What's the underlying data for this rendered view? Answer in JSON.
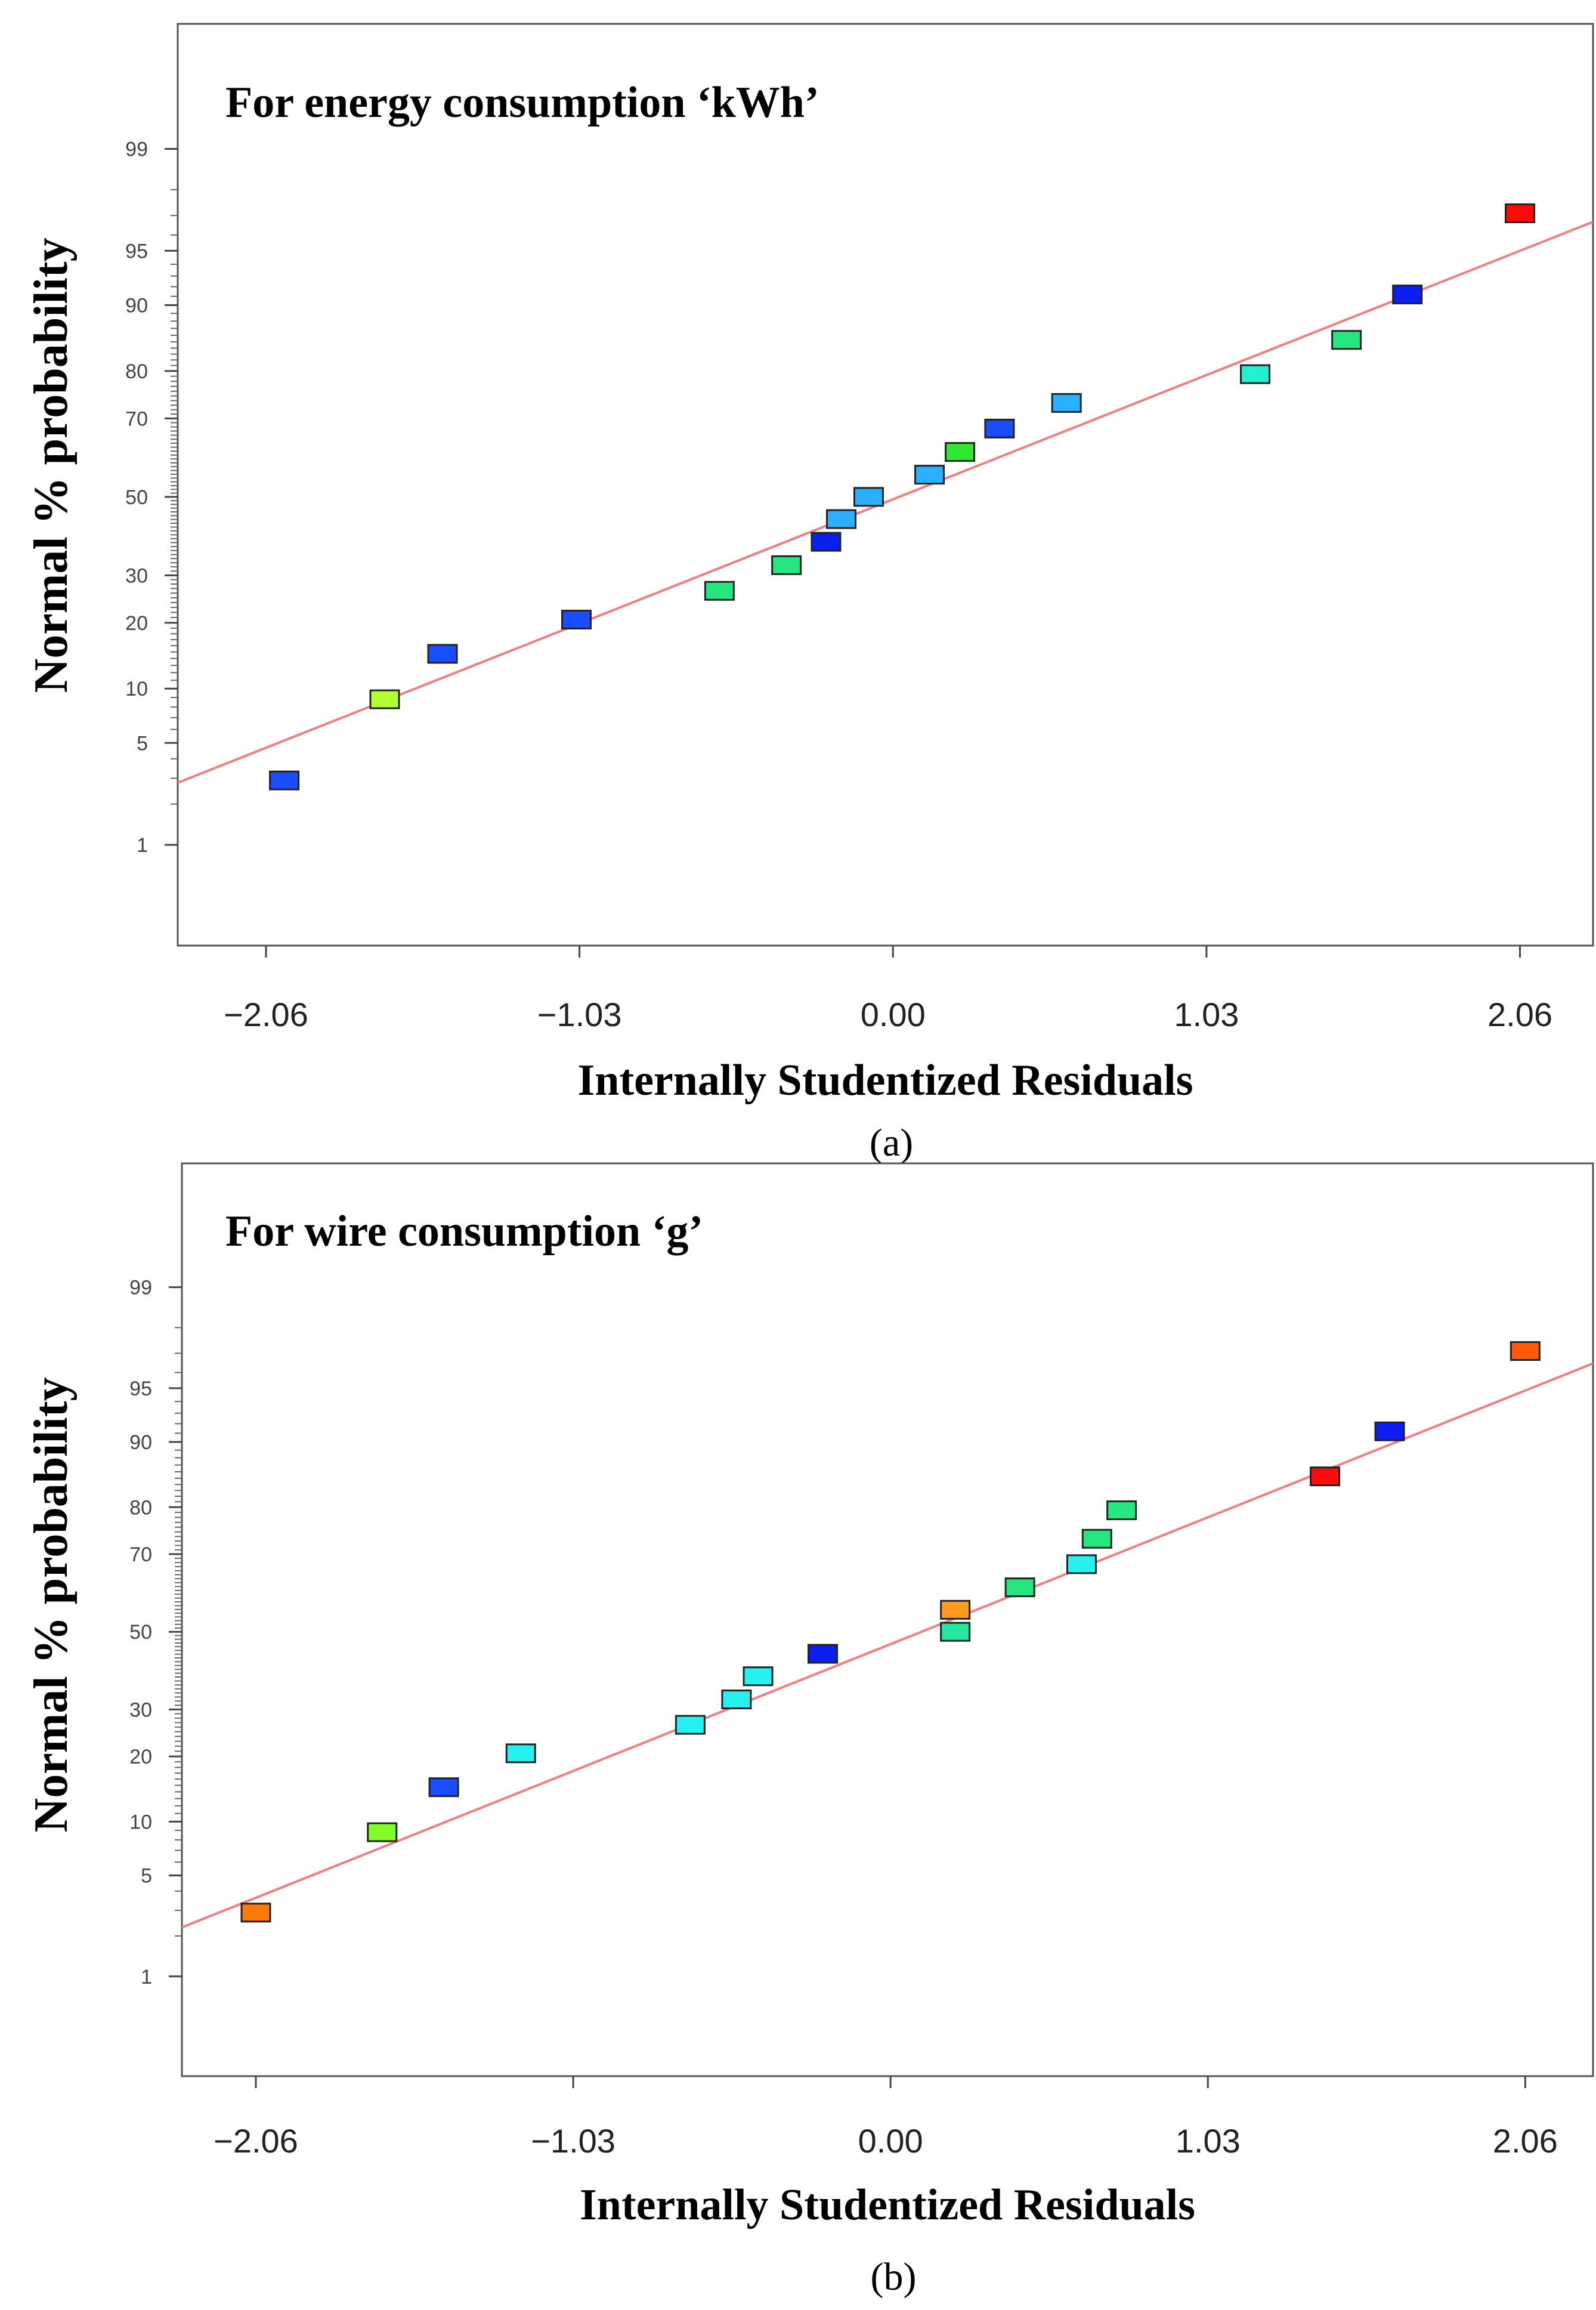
{
  "chart_data": [
    {
      "type": "scatter",
      "panel_label": "(a)",
      "title": "For energy consumption ‘kWh’",
      "xlabel": "Internally Studentized Residuals",
      "ylabel": "Normal % probability",
      "xlim": [
        -2.35,
        2.3
      ],
      "ylim": [
        0.15,
        99.9
      ],
      "x_ticks": [
        -2.06,
        -1.03,
        0.0,
        1.03,
        2.06
      ],
      "x_tick_labels": [
        "−2.06",
        "−1.03",
        "0.00",
        "1.03",
        "2.06"
      ],
      "y_ticks": [
        1,
        5,
        10,
        20,
        30,
        50,
        70,
        80,
        90,
        95,
        99
      ],
      "y_tick_labels": [
        "1",
        "5",
        "10",
        "20",
        "30",
        "50",
        "70",
        "80",
        "90",
        "95",
        "99"
      ],
      "line_color": "#f08080",
      "fit_line": {
        "x": [
          -2.35,
          2.3
        ],
        "y": [
          2.8,
          96.7
        ]
      },
      "points": [
        {
          "x": -2.0,
          "y": 2.9,
          "color": "#1a4dff"
        },
        {
          "x": -1.67,
          "y": 8.8,
          "color": "#b2ff33"
        },
        {
          "x": -1.48,
          "y": 14.7,
          "color": "#1a4dff"
        },
        {
          "x": -1.04,
          "y": 20.6,
          "color": "#1a4dff"
        },
        {
          "x": -0.57,
          "y": 26.5,
          "color": "#26e680"
        },
        {
          "x": -0.35,
          "y": 32.4,
          "color": "#26e680"
        },
        {
          "x": -0.22,
          "y": 38.2,
          "color": "#0a1ef0"
        },
        {
          "x": -0.17,
          "y": 44.1,
          "color": "#2ab0ff"
        },
        {
          "x": -0.08,
          "y": 50.0,
          "color": "#2ab0ff"
        },
        {
          "x": 0.12,
          "y": 55.9,
          "color": "#2ab0ff"
        },
        {
          "x": 0.22,
          "y": 61.8,
          "color": "#33e633"
        },
        {
          "x": 0.35,
          "y": 67.6,
          "color": "#1a4dff"
        },
        {
          "x": 0.57,
          "y": 73.5,
          "color": "#2ab0ff"
        },
        {
          "x": 1.19,
          "y": 79.4,
          "color": "#22f0d0"
        },
        {
          "x": 1.49,
          "y": 85.3,
          "color": "#26e680"
        },
        {
          "x": 1.69,
          "y": 91.2,
          "color": "#0a1ef0"
        },
        {
          "x": 2.06,
          "y": 97.1,
          "color": "#ff0a0a"
        }
      ]
    },
    {
      "type": "scatter",
      "panel_label": "(b)",
      "title": "For wire consumption ‘g’",
      "xlabel": "Internally Studentized Residuals",
      "ylabel": "Normal % probability",
      "xlim": [
        -2.3,
        2.28
      ],
      "ylim": [
        0.15,
        99.9
      ],
      "x_ticks": [
        -2.06,
        -1.03,
        0.0,
        1.03,
        2.06
      ],
      "x_tick_labels": [
        "−2.06",
        "−1.03",
        "0.00",
        "1.03",
        "2.06"
      ],
      "y_ticks": [
        1,
        5,
        10,
        20,
        30,
        50,
        70,
        80,
        90,
        95,
        99
      ],
      "y_tick_labels": [
        "1",
        "5",
        "10",
        "20",
        "30",
        "50",
        "70",
        "80",
        "90",
        "95",
        "99"
      ],
      "line_color": "#f08080",
      "fit_line": {
        "x": [
          -2.3,
          2.28
        ],
        "y": [
          2.3,
          96.5
        ]
      },
      "points": [
        {
          "x": -2.06,
          "y": 2.9,
          "color": "#ff7a0a"
        },
        {
          "x": -1.65,
          "y": 8.8,
          "color": "#80ff26"
        },
        {
          "x": -1.45,
          "y": 14.7,
          "color": "#1a4dff"
        },
        {
          "x": -1.2,
          "y": 20.6,
          "color": "#26f0f0"
        },
        {
          "x": -0.65,
          "y": 26.5,
          "color": "#26f0f0"
        },
        {
          "x": -0.5,
          "y": 32.4,
          "color": "#26f0f0"
        },
        {
          "x": -0.43,
          "y": 38.2,
          "color": "#26f0f0"
        },
        {
          "x": -0.22,
          "y": 44.1,
          "color": "#0a1ef0"
        },
        {
          "x": 0.21,
          "y": 50.0,
          "color": "#26e6a0"
        },
        {
          "x": 0.21,
          "y": 55.9,
          "color": "#ff9a1a"
        },
        {
          "x": 0.42,
          "y": 61.8,
          "color": "#26e680"
        },
        {
          "x": 0.62,
          "y": 67.6,
          "color": "#26f0f0"
        },
        {
          "x": 0.67,
          "y": 73.5,
          "color": "#26e680"
        },
        {
          "x": 0.75,
          "y": 79.4,
          "color": "#26e680"
        },
        {
          "x": 1.41,
          "y": 85.3,
          "color": "#ff0a0a"
        },
        {
          "x": 1.62,
          "y": 91.2,
          "color": "#0a1ef0"
        },
        {
          "x": 2.06,
          "y": 97.1,
          "color": "#ff5a0a"
        }
      ]
    }
  ]
}
